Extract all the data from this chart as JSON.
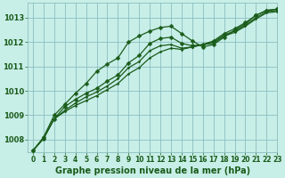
{
  "title": "Graphe pression niveau de la mer (hPa)",
  "background_color": "#c8eee8",
  "grid_color": "#8bbfbf",
  "line_color": "#1a5c1a",
  "xlim": [
    -0.5,
    23
  ],
  "ylim": [
    1007.5,
    1013.6
  ],
  "yticks": [
    1008,
    1009,
    1010,
    1011,
    1012,
    1013
  ],
  "xticks": [
    0,
    1,
    2,
    3,
    4,
    5,
    6,
    7,
    8,
    9,
    10,
    11,
    12,
    13,
    14,
    15,
    16,
    17,
    18,
    19,
    20,
    21,
    22,
    23
  ],
  "series": [
    {
      "y": [
        1007.55,
        1008.05,
        1008.85,
        1009.35,
        1009.65,
        1009.9,
        1010.1,
        1010.4,
        1010.65,
        1011.15,
        1011.45,
        1011.95,
        1012.15,
        1012.2,
        1011.95,
        1011.85,
        1011.9,
        1012.05,
        1012.35,
        1012.55,
        1012.8,
        1013.1,
        1013.3,
        1013.35
      ],
      "markers": true
    },
    {
      "y": [
        1007.55,
        1008.05,
        1008.85,
        1009.2,
        1009.5,
        1009.75,
        1009.95,
        1010.2,
        1010.5,
        1010.95,
        1011.2,
        1011.65,
        1011.85,
        1011.9,
        1011.75,
        1011.8,
        1011.9,
        1012.0,
        1012.3,
        1012.45,
        1012.7,
        1013.0,
        1013.25,
        1013.3
      ],
      "markers": false
    },
    {
      "y": [
        1007.55,
        1008.05,
        1008.85,
        1009.15,
        1009.4,
        1009.6,
        1009.8,
        1010.05,
        1010.3,
        1010.7,
        1010.95,
        1011.35,
        1011.6,
        1011.75,
        1011.7,
        1011.8,
        1011.9,
        1011.95,
        1012.25,
        1012.4,
        1012.65,
        1012.95,
        1013.2,
        1013.25
      ],
      "markers": false
    },
    {
      "y": [
        1007.55,
        1008.1,
        1009.0,
        1009.45,
        1009.9,
        1010.3,
        1010.8,
        1011.1,
        1011.35,
        1012.0,
        1012.25,
        1012.45,
        1012.6,
        1012.65,
        1012.35,
        1012.05,
        1011.8,
        1011.9,
        1012.2,
        1012.5,
        1012.75,
        1013.1,
        1013.3,
        1013.35
      ],
      "markers": true
    }
  ],
  "xlabel_fontsize": 7,
  "ytick_fontsize": 6,
  "xtick_fontsize": 5.5,
  "linewidth": 0.9,
  "markersize": 2.5
}
